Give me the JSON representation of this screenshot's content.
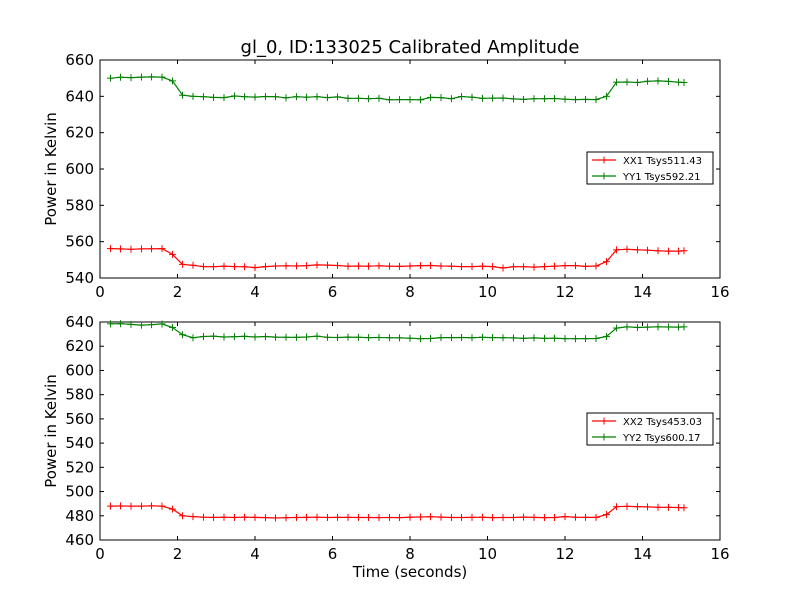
{
  "title": "gl_0, ID:133025 Calibrated Amplitude",
  "chart_data": [
    {
      "type": "line",
      "title": "gl_0, ID:133025 Calibrated Amplitude",
      "xlabel": "",
      "ylabel": "Power in Kelvin",
      "xlim": [
        0,
        16
      ],
      "ylim": [
        540,
        660
      ],
      "xticks": [
        "0",
        "2",
        "4",
        "6",
        "8",
        "10",
        "12",
        "14",
        "16"
      ],
      "yticks": [
        "540",
        "560",
        "580",
        "600",
        "620",
        "640",
        "660"
      ],
      "grid": false,
      "legend_position": "center-right",
      "x": [
        0.27,
        0.53,
        0.8,
        1.07,
        1.33,
        1.6,
        1.87,
        2.13,
        2.4,
        2.67,
        2.93,
        3.2,
        3.47,
        3.73,
        4.0,
        4.27,
        4.53,
        4.8,
        5.07,
        5.33,
        5.6,
        5.87,
        6.13,
        6.4,
        6.67,
        6.93,
        7.2,
        7.47,
        7.73,
        8.0,
        8.27,
        8.53,
        8.8,
        9.07,
        9.33,
        9.6,
        9.87,
        10.13,
        10.4,
        10.67,
        10.93,
        11.2,
        11.47,
        11.73,
        12.0,
        12.27,
        12.53,
        12.8,
        13.07,
        13.33,
        13.6,
        13.87,
        14.13,
        14.4,
        14.67,
        14.93,
        15.07
      ],
      "series": [
        {
          "name": "XX1 Tsys511.43",
          "color": "#ff0000",
          "values": [
            556.2,
            556.0,
            555.8,
            556.0,
            556.1,
            556.2,
            553.0,
            547.5,
            547.0,
            546.3,
            546.2,
            546.5,
            546.3,
            546.2,
            545.7,
            546.3,
            546.6,
            546.7,
            546.6,
            546.8,
            547.2,
            547.1,
            546.9,
            546.5,
            546.6,
            546.5,
            546.7,
            546.5,
            546.4,
            546.6,
            546.8,
            546.9,
            546.6,
            546.5,
            546.3,
            546.3,
            546.5,
            546.3,
            545.5,
            546.2,
            546.2,
            546.0,
            546.3,
            546.5,
            546.8,
            546.8,
            546.4,
            546.6,
            549.0,
            555.5,
            555.8,
            555.5,
            555.3,
            555.0,
            554.8,
            554.8,
            555.0
          ]
        },
        {
          "name": "YY1 Tsys592.21",
          "color": "#008000",
          "values": [
            650.0,
            650.5,
            650.3,
            650.6,
            650.7,
            650.6,
            648.5,
            640.6,
            640.0,
            639.8,
            639.4,
            639.3,
            640.2,
            639.8,
            639.6,
            639.9,
            639.8,
            639.2,
            639.8,
            639.5,
            639.8,
            639.3,
            639.7,
            638.9,
            638.9,
            638.7,
            638.9,
            638.1,
            638.2,
            638.2,
            638.1,
            639.4,
            639.3,
            638.7,
            639.9,
            639.5,
            638.9,
            639.0,
            639.1,
            638.6,
            638.3,
            638.7,
            638.7,
            638.8,
            638.4,
            638.2,
            638.3,
            638.2,
            640.0,
            647.8,
            647.9,
            647.6,
            648.3,
            648.5,
            648.2,
            647.8,
            647.6
          ]
        }
      ]
    },
    {
      "type": "line",
      "title": "",
      "xlabel": "Time (seconds)",
      "ylabel": "Power in Kelvin",
      "xlim": [
        0,
        16
      ],
      "ylim": [
        460,
        640
      ],
      "xticks": [
        "0",
        "2",
        "4",
        "6",
        "8",
        "10",
        "12",
        "14",
        "16"
      ],
      "yticks": [
        "460",
        "480",
        "500",
        "520",
        "540",
        "560",
        "580",
        "600",
        "620",
        "640"
      ],
      "grid": false,
      "legend_position": "center-right",
      "x": [
        0.27,
        0.53,
        0.8,
        1.07,
        1.33,
        1.6,
        1.87,
        2.13,
        2.4,
        2.67,
        2.93,
        3.2,
        3.47,
        3.73,
        4.0,
        4.27,
        4.53,
        4.8,
        5.07,
        5.33,
        5.6,
        5.87,
        6.13,
        6.4,
        6.67,
        6.93,
        7.2,
        7.47,
        7.73,
        8.0,
        8.27,
        8.53,
        8.8,
        9.07,
        9.33,
        9.6,
        9.87,
        10.13,
        10.4,
        10.67,
        10.93,
        11.2,
        11.47,
        11.73,
        12.0,
        12.27,
        12.53,
        12.8,
        13.07,
        13.33,
        13.6,
        13.87,
        14.13,
        14.4,
        14.67,
        14.93,
        15.07
      ],
      "series": [
        {
          "name": "XX2 Tsys453.03",
          "color": "#ff0000",
          "values": [
            488.0,
            488.1,
            488.0,
            488.0,
            488.2,
            488.0,
            485.5,
            480.0,
            479.3,
            478.8,
            478.7,
            478.8,
            478.6,
            478.8,
            478.7,
            478.5,
            478.2,
            478.4,
            478.6,
            478.7,
            478.8,
            478.6,
            478.7,
            478.7,
            478.6,
            478.6,
            478.5,
            478.6,
            478.5,
            478.8,
            479.0,
            479.2,
            478.9,
            478.6,
            478.6,
            478.7,
            478.8,
            478.5,
            478.6,
            478.6,
            478.9,
            478.7,
            478.5,
            478.6,
            479.3,
            478.8,
            478.7,
            478.7,
            481.0,
            487.5,
            487.8,
            487.5,
            487.3,
            487.0,
            487.0,
            486.8,
            486.6
          ]
        },
        {
          "name": "YY2 Tsys600.17",
          "color": "#008000",
          "values": [
            638.5,
            638.6,
            638.0,
            637.4,
            637.8,
            638.4,
            635.5,
            629.5,
            627.0,
            628.0,
            628.3,
            627.6,
            627.9,
            628.2,
            627.6,
            628.0,
            627.5,
            627.4,
            627.3,
            627.6,
            628.3,
            627.4,
            627.2,
            627.5,
            627.4,
            627.1,
            627.2,
            627.0,
            626.9,
            626.6,
            626.2,
            626.4,
            627.1,
            627.1,
            627.2,
            627.0,
            627.4,
            627.1,
            627.0,
            626.9,
            626.5,
            626.9,
            626.5,
            626.6,
            626.3,
            626.2,
            626.3,
            626.4,
            628.0,
            635.0,
            636.0,
            635.5,
            635.8,
            636.0,
            635.9,
            635.8,
            636.0
          ]
        }
      ]
    }
  ]
}
